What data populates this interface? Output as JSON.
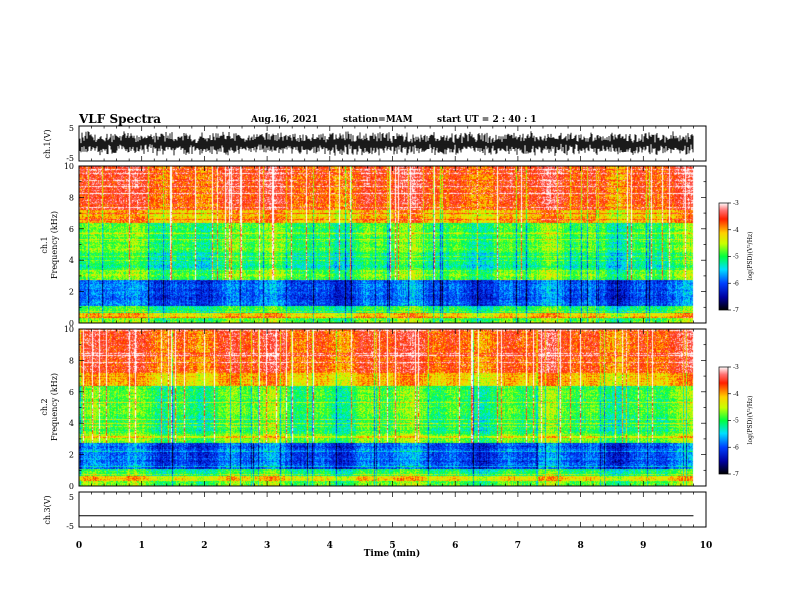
{
  "header": {
    "title": "VLF Spectra",
    "date": "Aug.16, 2021",
    "station": "station=MAM",
    "start": "start  UT =   2 : 40 : 1"
  },
  "chart_data": [
    {
      "type": "line",
      "panel": "waveform-ch1",
      "ylabel": "ch.1(V)",
      "yticks": [
        "5",
        "-5"
      ],
      "ylim": [
        -5,
        5
      ],
      "xlim": [
        0,
        10
      ],
      "description_of_signal": "dense noisy waveform spanning roughly -3 to +3 V"
    },
    {
      "type": "heatmap",
      "panel": "spectrogram-ch1",
      "ylabel": "ch.1",
      "ylabel2": "Frequency (kHz)",
      "yticks": [
        "0",
        "2",
        "4",
        "6",
        "8",
        "10"
      ],
      "ylim": [
        0,
        10
      ],
      "xlim": [
        0,
        10
      ],
      "colorbar": {
        "label": "log(PSD)(V²/Hz)",
        "ticks": [
          "-3",
          "-4",
          "-5",
          "-6",
          "-7"
        ],
        "range": [
          -7,
          -3
        ]
      }
    },
    {
      "type": "heatmap",
      "panel": "spectrogram-ch2",
      "ylabel": "ch.2",
      "ylabel2": "Frequency (kHz)",
      "yticks": [
        "0",
        "2",
        "4",
        "6",
        "8",
        "10"
      ],
      "ylim": [
        0,
        10
      ],
      "xlim": [
        0,
        10
      ],
      "colorbar": {
        "label": "log(PSD)(V²/Hz)",
        "ticks": [
          "-3",
          "-4",
          "-5",
          "-6",
          "-7"
        ],
        "range": [
          -7,
          -3
        ]
      }
    },
    {
      "type": "line",
      "panel": "waveform-ch3",
      "ylabel": "ch.3(V)",
      "yticks": [
        "5",
        "-5"
      ],
      "ylim": [
        -5,
        5
      ],
      "xlim": [
        0,
        10
      ],
      "y": [
        -2.0,
        -2.0
      ]
    }
  ],
  "xaxis": {
    "label": "Time  (min)",
    "ticks": [
      "0",
      "1",
      "2",
      "3",
      "4",
      "5",
      "6",
      "7",
      "8",
      "9",
      "10"
    ],
    "data_end": 9.8
  }
}
